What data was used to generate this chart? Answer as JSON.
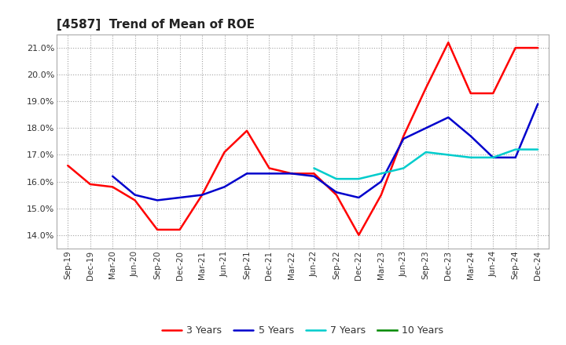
{
  "title": "[4587]  Trend of Mean of ROE",
  "x_labels": [
    "Sep-19",
    "Dec-19",
    "Mar-20",
    "Jun-20",
    "Sep-20",
    "Dec-20",
    "Mar-21",
    "Jun-21",
    "Sep-21",
    "Dec-21",
    "Mar-22",
    "Jun-22",
    "Sep-22",
    "Dec-22",
    "Mar-23",
    "Jun-23",
    "Sep-23",
    "Dec-23",
    "Mar-24",
    "Jun-24",
    "Sep-24",
    "Dec-24"
  ],
  "series_3y": [
    16.6,
    15.9,
    15.8,
    15.3,
    14.2,
    14.2,
    15.5,
    17.1,
    17.9,
    16.5,
    16.3,
    16.3,
    15.5,
    14.0,
    15.5,
    17.7,
    19.5,
    21.2,
    19.3,
    19.3,
    21.0,
    21.0
  ],
  "series_5y": [
    null,
    null,
    16.2,
    15.5,
    15.3,
    15.4,
    15.5,
    15.8,
    16.3,
    16.3,
    16.3,
    16.2,
    15.6,
    15.4,
    16.0,
    17.6,
    18.0,
    18.4,
    17.7,
    16.9,
    16.9,
    18.9
  ],
  "series_7y": [
    null,
    null,
    null,
    null,
    null,
    null,
    null,
    null,
    null,
    null,
    null,
    16.5,
    16.1,
    16.1,
    16.3,
    16.5,
    17.1,
    17.0,
    16.9,
    16.9,
    17.2,
    17.2
  ],
  "series_10y": [
    null,
    null,
    null,
    null,
    null,
    null,
    null,
    null,
    null,
    null,
    null,
    null,
    null,
    null,
    null,
    null,
    null,
    null,
    null,
    null,
    null,
    null
  ],
  "color_3y": "#ff0000",
  "color_5y": "#0000cc",
  "color_7y": "#00cccc",
  "color_10y": "#008800",
  "ylim": [
    13.5,
    21.5
  ],
  "yticks": [
    14.0,
    15.0,
    16.0,
    17.0,
    18.0,
    19.0,
    20.0,
    21.0
  ],
  "background_color": "#ffffff",
  "grid_color": "#999999",
  "legend_labels": [
    "3 Years",
    "5 Years",
    "7 Years",
    "10 Years"
  ]
}
